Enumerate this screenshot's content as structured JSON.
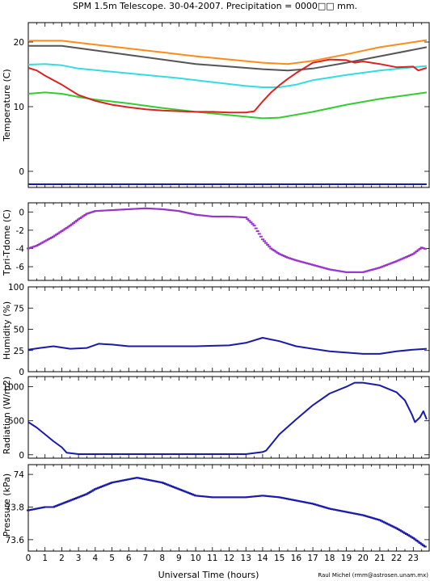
{
  "title": "SPM 1.5m Telescope. 30-04-2007. Precipitation = 0000□□ mm.",
  "credit": "Raul Michel (rmm@astrosen.unam.mx)",
  "chart_data": [
    {
      "type": "line",
      "ylabel": "Temperature (C)",
      "ylim": [
        -2.5,
        23
      ],
      "yticks": [
        0,
        10,
        20
      ],
      "series": [
        {
          "color": "#ff8c1a",
          "x": [
            0,
            2,
            4,
            6,
            8,
            10,
            12,
            14,
            15.5,
            17,
            19,
            21,
            23.8
          ],
          "y": [
            20.2,
            20.2,
            19.6,
            19.0,
            18.4,
            17.8,
            17.3,
            16.8,
            16.6,
            17.1,
            18.1,
            19.2,
            20.3
          ]
        },
        {
          "color": "#555555",
          "x": [
            0,
            2,
            4,
            6,
            8,
            10,
            12,
            14,
            15.5,
            17,
            19,
            21,
            23.8
          ],
          "y": [
            19.4,
            19.4,
            18.7,
            18.0,
            17.3,
            16.6,
            16.2,
            15.8,
            15.6,
            15.9,
            16.8,
            17.8,
            19.2
          ]
        },
        {
          "color": "#33dddd",
          "x": [
            0,
            1,
            2,
            3,
            5,
            7,
            9,
            11,
            13,
            14,
            15,
            16,
            17,
            19,
            21,
            23.8
          ],
          "y": [
            16.5,
            16.6,
            16.4,
            15.9,
            15.4,
            14.9,
            14.4,
            13.8,
            13.2,
            13.0,
            13.0,
            13.4,
            14.1,
            14.9,
            15.6,
            16.3
          ]
        },
        {
          "color": "#33cc33",
          "x": [
            0,
            1,
            2,
            3,
            4,
            6,
            8,
            10,
            12,
            14,
            15,
            17,
            19,
            21,
            23.8
          ],
          "y": [
            12.0,
            12.2,
            12.0,
            11.5,
            11.1,
            10.5,
            9.8,
            9.2,
            8.7,
            8.2,
            8.3,
            9.2,
            10.3,
            11.2,
            12.2
          ]
        },
        {
          "color": "#dd2222",
          "x": [
            0,
            0.5,
            1,
            2,
            3,
            4,
            5,
            6,
            7,
            8,
            9,
            10,
            11,
            12,
            13,
            13.5,
            14,
            14.5,
            15,
            15.5,
            16,
            16.5,
            17,
            18,
            19,
            19.5,
            20,
            21,
            22,
            23,
            23.3,
            23.8
          ],
          "y": [
            16.0,
            15.6,
            14.8,
            13.4,
            11.8,
            10.9,
            10.3,
            9.9,
            9.6,
            9.4,
            9.3,
            9.2,
            9.2,
            9.1,
            9.1,
            9.3,
            10.8,
            12.2,
            13.3,
            14.3,
            15.2,
            16.0,
            16.8,
            17.3,
            17.2,
            16.8,
            17.0,
            16.6,
            16.1,
            16.2,
            15.6,
            16.0
          ]
        },
        {
          "color": "#1a1aaa",
          "x": [
            0,
            23.8
          ],
          "y": [
            -2.0,
            -2.0
          ]
        }
      ]
    },
    {
      "type": "scatter",
      "ylabel": "Tpri-Tdome (C)",
      "ylim": [
        -7.5,
        1
      ],
      "yticks": [
        0,
        -2,
        -4,
        -6
      ],
      "series": [
        {
          "color": "#9933cc",
          "x": [
            0,
            0.5,
            1,
            1.5,
            2,
            2.5,
            3,
            3.5,
            4,
            5,
            6,
            7,
            8,
            9,
            10,
            11,
            12,
            13,
            13.5,
            14,
            14.5,
            15,
            15.5,
            16,
            17,
            18,
            19,
            20,
            21,
            22,
            23,
            23.5,
            23.8
          ],
          "y": [
            -4.0,
            -3.7,
            -3.2,
            -2.7,
            -2.1,
            -1.5,
            -0.8,
            -0.2,
            0.1,
            0.2,
            0.3,
            0.4,
            0.3,
            0.1,
            -0.3,
            -0.5,
            -0.5,
            -0.6,
            -1.5,
            -3.0,
            -4.0,
            -4.6,
            -5.0,
            -5.3,
            -5.8,
            -6.3,
            -6.6,
            -6.6,
            -6.1,
            -5.4,
            -4.6,
            -3.9,
            -4.1
          ]
        }
      ]
    },
    {
      "type": "line",
      "ylabel": "Humidity (%)",
      "ylim": [
        0,
        100
      ],
      "yticks": [
        0,
        25,
        50,
        75,
        100
      ],
      "series": [
        {
          "color": "#1a1aaa",
          "x": [
            0,
            0.7,
            1.5,
            2.5,
            3.5,
            4.2,
            5,
            6,
            8,
            10,
            12,
            13,
            14,
            15,
            16,
            18,
            20,
            21,
            22,
            23,
            23.8
          ],
          "y": [
            26,
            28,
            30,
            27,
            28,
            33,
            32,
            30,
            30,
            30,
            31,
            34,
            40,
            36,
            30,
            24,
            21,
            21,
            24,
            26,
            27
          ]
        }
      ]
    },
    {
      "type": "line",
      "ylabel": "Radiation (W/m2)",
      "ylim": [
        -50,
        1150
      ],
      "yticks": [
        0,
        500,
        1000
      ],
      "series": [
        {
          "color": "#1a1aaa",
          "x": [
            0,
            0.5,
            1,
            1.5,
            2,
            2.3,
            3,
            5,
            8,
            11,
            13,
            14,
            14.2,
            14.5,
            15,
            16,
            17,
            18,
            19,
            19.5,
            20,
            21,
            22,
            22.5,
            22.9,
            23.1,
            23.4,
            23.6,
            23.8
          ],
          "y": [
            480,
            400,
            300,
            200,
            110,
            30,
            10,
            10,
            10,
            10,
            10,
            40,
            60,
            150,
            300,
            520,
            730,
            900,
            1000,
            1060,
            1060,
            1020,
            920,
            800,
            600,
            480,
            550,
            640,
            520
          ]
        }
      ]
    },
    {
      "type": "scatter",
      "ylabel": "Pressure (kPa)",
      "ylim": [
        73.53,
        74.06
      ],
      "yticks": [
        73.6,
        73.8,
        74
      ],
      "series": [
        {
          "color": "#1a1aaa",
          "x": [
            0,
            1,
            1.5,
            2,
            2.5,
            3,
            3.5,
            4,
            4.5,
            5,
            5.5,
            6,
            6.5,
            7,
            7.5,
            8,
            8.5,
            9,
            9.5,
            10,
            11,
            12,
            13,
            14,
            15,
            16,
            17,
            18,
            19,
            20,
            21,
            22,
            23,
            23.8
          ],
          "y": [
            73.78,
            73.8,
            73.8,
            73.82,
            73.84,
            73.86,
            73.88,
            73.91,
            73.93,
            73.95,
            73.96,
            73.97,
            73.98,
            73.97,
            73.96,
            73.95,
            73.93,
            73.91,
            73.89,
            73.87,
            73.86,
            73.86,
            73.86,
            73.87,
            73.86,
            73.84,
            73.82,
            73.79,
            73.77,
            73.75,
            73.72,
            73.67,
            73.61,
            73.55
          ]
        }
      ]
    }
  ],
  "xaxis": {
    "label": "Universal Time (hours)",
    "range": [
      0,
      23.95
    ],
    "ticks": [
      "0",
      "1",
      "2",
      "3",
      "4",
      "5",
      "6",
      "7",
      "8",
      "9",
      "10",
      "11",
      "12",
      "13",
      "14",
      "15",
      "16",
      "17",
      "18",
      "19",
      "20",
      "21",
      "22",
      "23"
    ]
  }
}
